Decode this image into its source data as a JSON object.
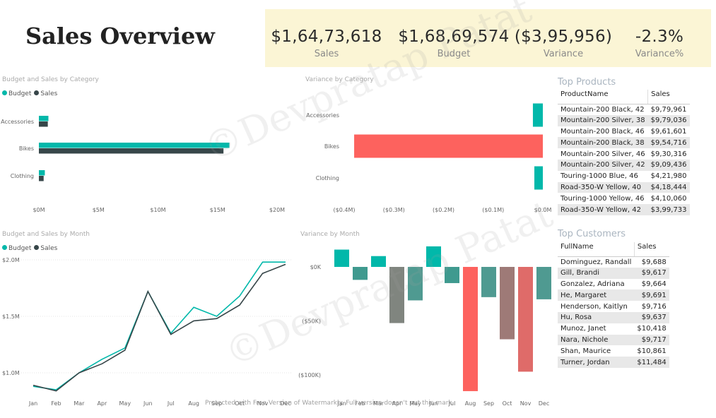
{
  "page": {
    "title": "Sales Overview"
  },
  "kpis": [
    {
      "value": "$1,64,73,618",
      "label": "Sales"
    },
    {
      "value": "$1,68,69,574",
      "label": "Budget"
    },
    {
      "value": "($3,95,956)",
      "label": "Variance"
    },
    {
      "value": "-2.3%",
      "label": "Variance%"
    }
  ],
  "colors": {
    "budget": "#01b8aa",
    "sales": "#374649",
    "negative": "#fd625e",
    "kpi_bg": "#fbf5d5"
  },
  "chart1": {
    "title": "Budget and Sales by Category"
  },
  "chart2": {
    "title": "Variance by Category"
  },
  "chart3": {
    "title": "Budget and Sales by Month"
  },
  "chart4": {
    "title": "Variance by Month"
  },
  "legend": {
    "budget": "Budget",
    "sales": "Sales"
  },
  "chart_data": [
    {
      "type": "bar",
      "orientation": "horizontal",
      "title": "Budget and Sales by Category",
      "categories": [
        "Accessories",
        "Bikes",
        "Clothing"
      ],
      "series": [
        {
          "name": "Budget",
          "values": [
            0.8,
            16.0,
            0.5
          ]
        },
        {
          "name": "Sales",
          "values": [
            0.75,
            15.5,
            0.4
          ]
        }
      ],
      "xlim": [
        0,
        20
      ],
      "x_ticks": [
        "$0M",
        "$5M",
        "$10M",
        "$15M",
        "$20M"
      ],
      "legend_position": "top-left"
    },
    {
      "type": "bar",
      "orientation": "horizontal",
      "title": "Variance by Category",
      "categories": [
        "Accessories",
        "Bikes",
        "Clothing"
      ],
      "values": [
        0.02,
        -0.38,
        0.012
      ],
      "xlim": [
        -0.4,
        0.0
      ],
      "x_ticks": [
        "($0.4M)",
        "($0.3M)",
        "($0.2M)",
        "($0.1M)",
        "$0.0M"
      ]
    },
    {
      "type": "line",
      "title": "Budget and Sales by Month",
      "categories": [
        "Jan",
        "Feb",
        "Mar",
        "Apr",
        "May",
        "Jun",
        "Jul",
        "Aug",
        "Sep",
        "Oct",
        "Nov",
        "Dec"
      ],
      "series": [
        {
          "name": "Budget",
          "values": [
            0.88,
            0.85,
            1.0,
            1.12,
            1.22,
            1.72,
            1.35,
            1.58,
            1.5,
            1.68,
            1.98,
            1.98
          ]
        },
        {
          "name": "Sales",
          "values": [
            0.89,
            0.84,
            1.0,
            1.08,
            1.2,
            1.72,
            1.34,
            1.46,
            1.48,
            1.6,
            1.88,
            1.96
          ]
        }
      ],
      "ylim": [
        0.8,
        2.0
      ],
      "y_ticks": [
        "$1.0M",
        "$1.5M",
        "$2.0M"
      ],
      "legend_position": "top-left"
    },
    {
      "type": "bar",
      "title": "Variance by Month",
      "categories": [
        "Jan",
        "Feb",
        "Mar",
        "Apr",
        "May",
        "Jun",
        "Jul",
        "Aug",
        "Sep",
        "Oct",
        "Nov",
        "Dec"
      ],
      "values": [
        16,
        -12,
        10,
        -52,
        -31,
        19,
        -15,
        -115,
        -28,
        -67,
        -97,
        -30
      ],
      "ylim": [
        -115,
        20
      ],
      "y_ticks": [
        "$0K",
        "($50K)",
        "($100K)"
      ]
    }
  ],
  "top_products": {
    "title": "Top Products",
    "columns": [
      "ProductName",
      "Sales"
    ],
    "rows": [
      [
        "Mountain-200 Black, 42",
        "$9,79,961"
      ],
      [
        "Mountain-200 Silver, 38",
        "$9,79,036"
      ],
      [
        "Mountain-200 Black, 46",
        "$9,61,601"
      ],
      [
        "Mountain-200 Black, 38",
        "$9,54,716"
      ],
      [
        "Mountain-200 Silver, 46",
        "$9,30,316"
      ],
      [
        "Mountain-200 Silver, 42",
        "$9,09,436"
      ],
      [
        "Touring-1000 Blue, 46",
        "$4,21,980"
      ],
      [
        "Road-350-W Yellow, 40",
        "$4,18,444"
      ],
      [
        "Touring-1000 Yellow, 46",
        "$4,10,060"
      ],
      [
        "Road-350-W Yellow, 42",
        "$3,99,733"
      ]
    ]
  },
  "top_customers": {
    "title": "Top Customers",
    "columns": [
      "FullName",
      "Sales"
    ],
    "rows": [
      [
        "Dominguez, Randall",
        "$9,688"
      ],
      [
        "Gill, Brandi",
        "$9,617"
      ],
      [
        "Gonzalez, Adriana",
        "$9,664"
      ],
      [
        "He, Margaret",
        "$9,691"
      ],
      [
        "Henderson, Kaitlyn",
        "$9,716"
      ],
      [
        "Hu, Rosa",
        "$9,637"
      ],
      [
        "Munoz, Janet",
        "$10,418"
      ],
      [
        "Nara, Nichole",
        "$9,717"
      ],
      [
        "Shan, Maurice",
        "$10,861"
      ],
      [
        "Turner, Jordan",
        "$11,484"
      ]
    ]
  },
  "watermark": {
    "text": "©Devpratap Patat",
    "footer": "Protected with Free Version of Watermarkly. Full version doesn't put this mark."
  }
}
